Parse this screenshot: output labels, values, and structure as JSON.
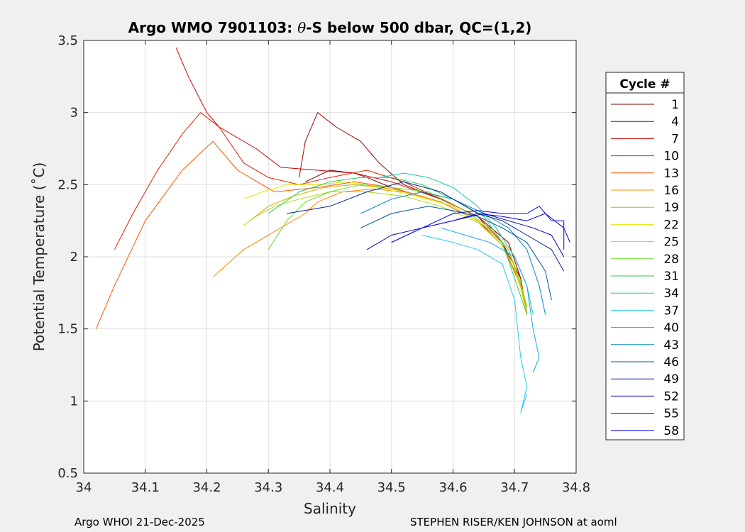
{
  "chart_data": {
    "type": "line",
    "title_prefix": "Argo WMO 7901103: ",
    "title_theta": "θ",
    "title_suffix": "-S below 500 dbar,  QC=(1,2)",
    "xlabel": "Salinity",
    "ylabel": "Potential Temperature (˚C)",
    "xlim": [
      34,
      34.8
    ],
    "ylim": [
      0.5,
      3.5
    ],
    "xticks": [
      "34",
      "34.1",
      "34.2",
      "34.3",
      "34.4",
      "34.5",
      "34.6",
      "34.7",
      "34.8"
    ],
    "yticks": [
      "0.5",
      "1",
      "1.5",
      "2",
      "2.5",
      "3",
      "3.5"
    ],
    "grid": true,
    "legend_title": "Cycle #",
    "legend_position": "right",
    "footer_left": "Argo WHOI 21-Dec-2025",
    "footer_right": "STEPHEN RISER/KEN JOHNSON at aoml",
    "series": [
      {
        "name": "1",
        "color": "#7f0000",
        "x": [
          34.36,
          34.4,
          34.44,
          34.46,
          34.5,
          34.58,
          34.64,
          34.68,
          34.71,
          34.72
        ],
        "y": [
          2.52,
          2.6,
          2.58,
          2.55,
          2.48,
          2.38,
          2.25,
          2.1,
          1.85,
          1.6
        ]
      },
      {
        "name": "4",
        "color": "#a50000",
        "x": [
          34.35,
          34.36,
          34.38,
          34.41,
          34.45,
          34.48,
          34.52,
          34.58,
          34.64,
          34.69,
          34.71,
          34.72
        ],
        "y": [
          2.55,
          2.8,
          3.0,
          2.9,
          2.8,
          2.65,
          2.5,
          2.4,
          2.28,
          2.1,
          1.85,
          1.6
        ]
      },
      {
        "name": "7",
        "color": "#cc0000",
        "x": [
          34.15,
          34.17,
          34.2,
          34.22,
          34.28,
          34.32,
          34.38,
          34.44,
          34.5,
          34.58,
          34.64,
          34.69,
          34.71,
          34.72
        ],
        "y": [
          3.45,
          3.25,
          3.0,
          2.9,
          2.75,
          2.62,
          2.6,
          2.58,
          2.52,
          2.4,
          2.28,
          2.1,
          1.85,
          1.6
        ]
      },
      {
        "name": "10",
        "color": "#e61a00",
        "x": [
          34.05,
          34.08,
          34.12,
          34.16,
          34.19,
          34.22,
          34.26,
          34.3,
          34.35,
          34.4,
          34.46,
          34.52,
          34.58,
          34.64,
          34.68,
          34.71,
          34.72
        ],
        "y": [
          2.05,
          2.3,
          2.6,
          2.85,
          3.0,
          2.9,
          2.65,
          2.55,
          2.5,
          2.55,
          2.6,
          2.52,
          2.4,
          2.28,
          2.1,
          1.8,
          1.6
        ]
      },
      {
        "name": "13",
        "color": "#ff5500",
        "x": [
          34.02,
          34.05,
          34.1,
          34.16,
          34.21,
          34.25,
          34.31,
          34.38,
          34.44,
          34.5,
          34.58,
          34.64,
          34.68,
          34.71,
          34.72
        ],
        "y": [
          1.5,
          1.8,
          2.25,
          2.6,
          2.8,
          2.6,
          2.45,
          2.48,
          2.52,
          2.48,
          2.38,
          2.25,
          2.08,
          1.8,
          1.6
        ]
      },
      {
        "name": "16",
        "color": "#ff8800",
        "x": [
          34.21,
          34.26,
          34.32,
          34.36,
          34.38,
          34.42,
          34.47,
          34.52,
          34.58,
          34.64,
          34.68,
          34.71,
          34.72
        ],
        "y": [
          1.86,
          2.05,
          2.2,
          2.3,
          2.38,
          2.45,
          2.47,
          2.45,
          2.38,
          2.25,
          2.08,
          1.82,
          1.62
        ]
      },
      {
        "name": "19",
        "color": "#d4b000",
        "x": [
          34.27,
          34.3,
          34.34,
          34.39,
          34.44,
          34.5,
          34.55,
          34.6,
          34.65,
          34.69,
          34.71,
          34.72
        ],
        "y": [
          2.25,
          2.35,
          2.42,
          2.48,
          2.5,
          2.47,
          2.42,
          2.35,
          2.22,
          2.05,
          1.8,
          1.6
        ]
      },
      {
        "name": "22",
        "color": "#e6e600",
        "x": [
          34.26,
          34.29,
          34.33,
          34.38,
          34.43,
          34.48,
          34.54,
          34.6,
          34.65,
          34.69,
          34.71,
          34.72
        ],
        "y": [
          2.4,
          2.45,
          2.5,
          2.5,
          2.52,
          2.48,
          2.42,
          2.35,
          2.22,
          2.05,
          1.78,
          1.6
        ]
      },
      {
        "name": "25",
        "color": "#aadd00",
        "x": [
          34.26,
          34.28,
          34.31,
          34.35,
          34.4,
          34.46,
          34.52,
          34.58,
          34.64,
          34.68,
          34.71,
          34.72
        ],
        "y": [
          2.22,
          2.28,
          2.35,
          2.4,
          2.45,
          2.45,
          2.42,
          2.35,
          2.24,
          2.08,
          1.82,
          1.65
        ]
      },
      {
        "name": "28",
        "color": "#66dd22",
        "x": [
          34.3,
          34.33,
          34.36,
          34.4,
          34.45,
          34.5,
          34.56,
          34.62,
          34.66,
          34.69,
          34.71,
          34.72
        ],
        "y": [
          2.05,
          2.25,
          2.38,
          2.45,
          2.5,
          2.48,
          2.45,
          2.32,
          2.2,
          2.05,
          1.82,
          1.65
        ]
      },
      {
        "name": "31",
        "color": "#22cc55",
        "x": [
          34.3,
          34.35,
          34.4,
          34.45,
          34.5,
          34.55,
          34.6,
          34.65,
          34.68,
          34.7,
          34.72
        ],
        "y": [
          2.3,
          2.45,
          2.52,
          2.55,
          2.55,
          2.5,
          2.4,
          2.28,
          2.1,
          1.85,
          1.6
        ]
      },
      {
        "name": "34",
        "color": "#11ccaa",
        "x": [
          34.48,
          34.52,
          34.56,
          34.6,
          34.64,
          34.67,
          34.7,
          34.72,
          34.73
        ],
        "y": [
          2.55,
          2.58,
          2.55,
          2.48,
          2.35,
          2.2,
          2.0,
          1.8,
          1.6
        ]
      },
      {
        "name": "37",
        "color": "#22ccee",
        "x": [
          34.55,
          34.6,
          34.64,
          34.68,
          34.7,
          34.71,
          34.72,
          34.71,
          34.72
        ],
        "y": [
          2.15,
          2.1,
          2.05,
          1.95,
          1.7,
          1.3,
          1.1,
          0.92,
          1.05
        ]
      },
      {
        "name": "40",
        "color": "#11aadd",
        "x": [
          34.58,
          34.62,
          34.66,
          34.7,
          34.72,
          34.73,
          34.74,
          34.73
        ],
        "y": [
          2.2,
          2.15,
          2.1,
          2.0,
          1.8,
          1.5,
          1.3,
          1.2
        ]
      },
      {
        "name": "43",
        "color": "#0088bb",
        "x": [
          34.45,
          34.5,
          34.55,
          34.6,
          34.65,
          34.69,
          34.72,
          34.74,
          34.75
        ],
        "y": [
          2.3,
          2.4,
          2.45,
          2.4,
          2.3,
          2.2,
          2.05,
          1.8,
          1.6
        ]
      },
      {
        "name": "46",
        "color": "#0055aa",
        "x": [
          34.45,
          34.5,
          34.56,
          34.6,
          34.64,
          34.68,
          34.72,
          34.75,
          34.76
        ],
        "y": [
          2.2,
          2.3,
          2.35,
          2.32,
          2.28,
          2.2,
          2.1,
          1.9,
          1.7
        ]
      },
      {
        "name": "49",
        "color": "#002299",
        "x": [
          34.33,
          34.4,
          34.46,
          34.52,
          34.58,
          34.64,
          34.68,
          34.72,
          34.76,
          34.78
        ],
        "y": [
          2.3,
          2.35,
          2.45,
          2.52,
          2.45,
          2.3,
          2.25,
          2.15,
          2.05,
          1.9
        ]
      },
      {
        "name": "52",
        "color": "#0000bb",
        "x": [
          34.46,
          34.5,
          34.55,
          34.6,
          34.65,
          34.69,
          34.73,
          34.76,
          34.78
        ],
        "y": [
          2.05,
          2.15,
          2.2,
          2.25,
          2.3,
          2.25,
          2.2,
          2.15,
          2.0
        ]
      },
      {
        "name": "55",
        "color": "#0000dd",
        "x": [
          34.5,
          34.55,
          34.6,
          34.64,
          34.68,
          34.72,
          34.75,
          34.78,
          34.79
        ],
        "y": [
          2.1,
          2.2,
          2.25,
          2.3,
          2.28,
          2.25,
          2.3,
          2.2,
          2.1
        ]
      },
      {
        "name": "58",
        "color": "#0000ff",
        "x": [
          34.5,
          34.55,
          34.6,
          34.64,
          34.68,
          34.72,
          34.74,
          34.76,
          34.78,
          34.78
        ],
        "y": [
          2.1,
          2.2,
          2.3,
          2.32,
          2.3,
          2.3,
          2.35,
          2.25,
          2.25,
          2.05
        ]
      }
    ]
  }
}
